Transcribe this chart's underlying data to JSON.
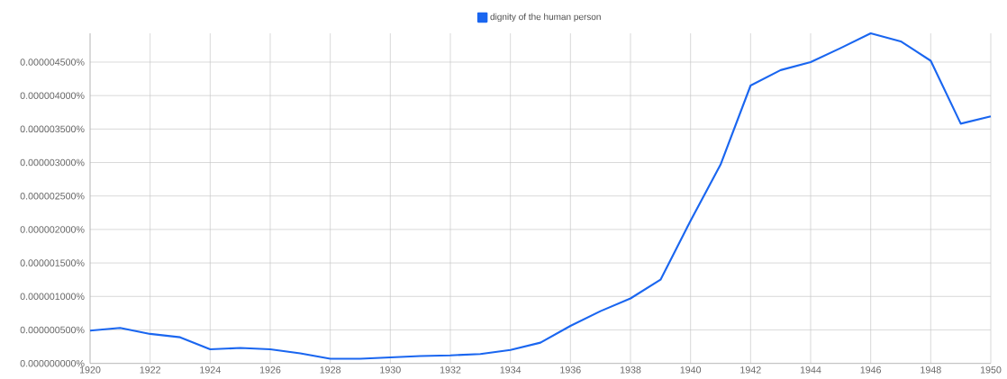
{
  "chart_data": {
    "type": "line",
    "x": [
      1920,
      1921,
      1922,
      1923,
      1924,
      1925,
      1926,
      1927,
      1928,
      1929,
      1930,
      1931,
      1932,
      1933,
      1934,
      1935,
      1936,
      1937,
      1938,
      1939,
      1940,
      1941,
      1942,
      1943,
      1944,
      1945,
      1946,
      1947,
      1948,
      1949,
      1950
    ],
    "series": [
      {
        "name": "dignity of the human person",
        "color": "#1a66f0",
        "values": [
          4.9e-07,
          5.3e-07,
          4.4e-07,
          3.9e-07,
          2.1e-07,
          2.3e-07,
          2.1e-07,
          1.5e-07,
          7e-08,
          7e-08,
          9e-08,
          1.1e-07,
          1.2e-07,
          1.4e-07,
          2e-07,
          3.1e-07,
          5.6e-07,
          7.8e-07,
          9.7e-07,
          1.25e-06,
          2.13e-06,
          2.97e-06,
          4.15e-06,
          4.38e-06,
          4.5e-06,
          4.71e-06,
          4.93e-06,
          4.81e-06,
          4.52e-06,
          3.58e-06,
          3.69e-06
        ]
      }
    ],
    "xlim": [
      1920,
      1950
    ],
    "xticks": [
      1920,
      1922,
      1924,
      1926,
      1928,
      1930,
      1932,
      1934,
      1936,
      1938,
      1940,
      1942,
      1944,
      1946,
      1948,
      1950
    ],
    "ylim": [
      0,
      4.93e-06
    ],
    "yticks": [
      {
        "value": 0,
        "label": "0.000000000%"
      },
      {
        "value": 5e-07,
        "label": "0.000000500%"
      },
      {
        "value": 1e-06,
        "label": "0.000001000%"
      },
      {
        "value": 1.5e-06,
        "label": "0.000001500%"
      },
      {
        "value": 2e-06,
        "label": "0.000002000%"
      },
      {
        "value": 2.5e-06,
        "label": "0.000002500%"
      },
      {
        "value": 3e-06,
        "label": "0.000003000%"
      },
      {
        "value": 3.5e-06,
        "label": "0.000003500%"
      },
      {
        "value": 4e-06,
        "label": "0.000004000%"
      },
      {
        "value": 4.5e-06,
        "label": "0.000004500%"
      }
    ],
    "grid": true,
    "legend": "top",
    "marker": "none",
    "line_style": "solid"
  }
}
